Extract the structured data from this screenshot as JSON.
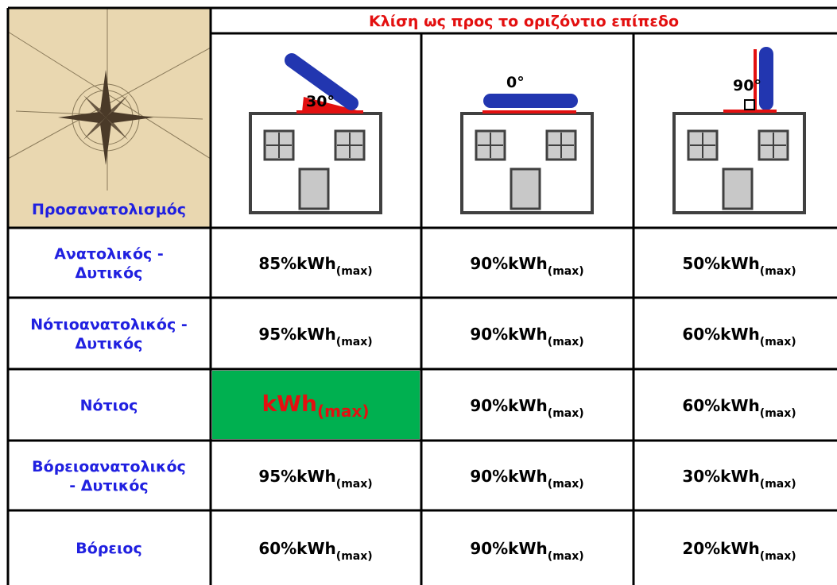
{
  "header": {
    "title": "Κλίση ως προς το οριζόντιο επίπεδο",
    "corner_label": "Προσανατολισμός",
    "angles": [
      "30°",
      "0°",
      "90°"
    ]
  },
  "table": {
    "rows": [
      {
        "label_lines": [
          "Ανατολικός -",
          "Δυτικός"
        ],
        "cells": [
          {
            "main": "85%kWh",
            "sub": "(max)"
          },
          {
            "main": "90%kWh",
            "sub": "(max)"
          },
          {
            "main": "50%kWh",
            "sub": "(max)"
          }
        ]
      },
      {
        "label_lines": [
          "Νότιοανατολικός -",
          "Δυτικός"
        ],
        "cells": [
          {
            "main": "95%kWh",
            "sub": "(max)"
          },
          {
            "main": "90%kWh",
            "sub": "(max)"
          },
          {
            "main": "60%kWh",
            "sub": "(max)"
          }
        ]
      },
      {
        "label_lines": [
          "Νότιος"
        ],
        "cells": [
          {
            "main": "kWh",
            "sub": "(max)"
          },
          {
            "main": "90%kWh",
            "sub": "(max)"
          },
          {
            "main": "60%kWh",
            "sub": "(max)"
          }
        ]
      },
      {
        "label_lines": [
          "Βόρειοανατολικός",
          "- Δυτικός"
        ],
        "cells": [
          {
            "main": "95%kWh",
            "sub": "(max)"
          },
          {
            "main": "90%kWh",
            "sub": "(max)"
          },
          {
            "main": "30%kWh",
            "sub": "(max)"
          }
        ]
      },
      {
        "label_lines": [
          "Βόρειος"
        ],
        "cells": [
          {
            "main": "60%kWh",
            "sub": "(max)"
          },
          {
            "main": "90%kWh",
            "sub": "(max)"
          },
          {
            "main": "20%kWh",
            "sub": "(max)"
          }
        ]
      }
    ]
  }
}
